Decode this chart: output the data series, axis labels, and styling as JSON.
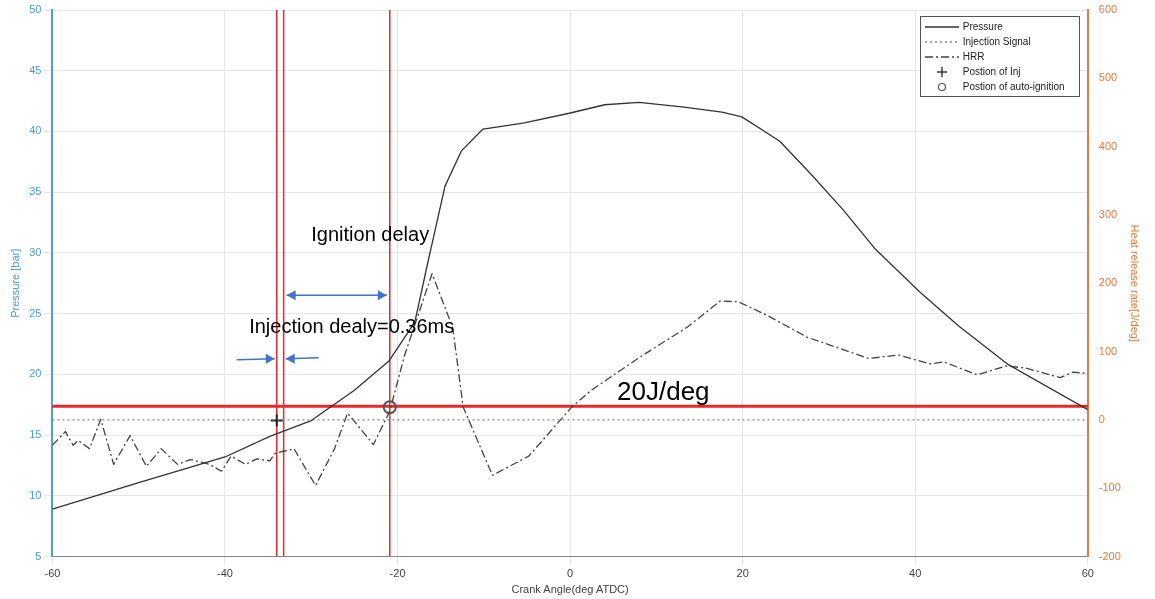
{
  "chart_data": {
    "type": "line",
    "xlabel": "Crank Angle(deg ATDC)",
    "ylabel": "Pressure [bar]",
    "y2label": "Heat release rate[J/deg]",
    "xlim": [
      -60,
      60
    ],
    "xticks": [
      -60,
      -40,
      -20,
      0,
      20,
      40,
      60
    ],
    "ylim": [
      5,
      50
    ],
    "yticks": [
      5,
      10,
      15,
      20,
      25,
      30,
      35,
      40,
      45,
      50
    ],
    "y2lim": [
      -200,
      600
    ],
    "y2ticks": [
      -200,
      -100,
      0,
      100,
      200,
      300,
      400,
      500,
      600
    ],
    "grid": true,
    "legend": "top right",
    "series": [
      {
        "name": "Pressure",
        "color": "#333333",
        "line_style": "solid",
        "marker": "none",
        "x": [
          -60,
          -50,
          -40,
          -34.8,
          -30,
          -25,
          -21,
          -18,
          -16.4,
          -14.5,
          -12.6,
          -10.1,
          -5.3,
          -0.1,
          4,
          8,
          13.2,
          17.6,
          19.9,
          24.3,
          27.9,
          31.7,
          35.4,
          40.5,
          45,
          50.8,
          60
        ],
        "values": [
          8.9,
          11.1,
          13.2,
          14.9,
          16.2,
          18.7,
          21.1,
          24.3,
          29.5,
          35.5,
          38.4,
          40.2,
          40.7,
          41.5,
          42.2,
          42.4,
          42,
          41.6,
          41.2,
          39.2,
          36.5,
          33.5,
          30.3,
          26.8,
          24,
          20.8,
          17.1
        ]
      },
      {
        "name": "Injection Signal",
        "axis": "y2",
        "color": "#888888",
        "line_style": "dotted",
        "marker": "none",
        "x": [
          -60,
          60
        ],
        "values": [
          0,
          0
        ]
      },
      {
        "name": "HRR",
        "axis": "y2",
        "color": "#444444",
        "line_style": "dashed",
        "marker": "none",
        "x": [
          -60,
          -58.5,
          -57.6,
          -57,
          -55.7,
          -54.4,
          -52.9,
          -51,
          -49.1,
          -47.4,
          -45.5,
          -44,
          -41.8,
          -40.4,
          -39.3,
          -37.6,
          -36.3,
          -34.8,
          -34.2,
          -32,
          -29.5,
          -27.3,
          -25.8,
          -22.8,
          -20.9,
          -19.2,
          -16,
          -13.6,
          -12.4,
          -9,
          -4.8,
          0.2,
          2.4,
          8.1,
          13.6,
          17.4,
          19.5,
          22.7,
          27.5,
          29.8,
          34.6,
          38.1,
          41.7,
          43.3,
          47.2,
          50.5,
          52.8,
          56.8,
          58.3,
          60
        ],
        "values": [
          -37,
          -17,
          -37,
          -30,
          -42,
          1,
          -65,
          -23,
          -68,
          -42,
          -65,
          -58,
          -65,
          -75,
          -53,
          -65,
          -57,
          -60,
          -49,
          -42,
          -96,
          -42,
          10,
          -36,
          13,
          94,
          214,
          135,
          19,
          -81,
          -53,
          19,
          43,
          92,
          136,
          174,
          173,
          154,
          121,
          111,
          90,
          95,
          82,
          85,
          66,
          79,
          76,
          62,
          70,
          68
        ]
      },
      {
        "name": "Postion of Inj",
        "type": "scatter",
        "color": "#222222",
        "marker": "cross",
        "x": [
          -34
        ],
        "values": [
          16.2
        ]
      },
      {
        "name": "Postion of auto-ignition",
        "type": "scatter",
        "color": "#555555",
        "marker": "circle",
        "x": [
          -20.9
        ],
        "values": [
          17.3
        ]
      }
    ],
    "ref_lines": [
      {
        "axis": "x",
        "value": -34,
        "color": "#e8272a"
      },
      {
        "axis": "x",
        "value": -33.2,
        "color": "#e8272a"
      },
      {
        "axis": "x",
        "value": -20.9,
        "color": "#e8272a"
      },
      {
        "axis": "y2",
        "value": 20,
        "label": "20J/deg",
        "color": "#e8272a"
      }
    ],
    "annotations": [
      "Ignition delay",
      "Injection dealy=0.36ms"
    ]
  }
}
